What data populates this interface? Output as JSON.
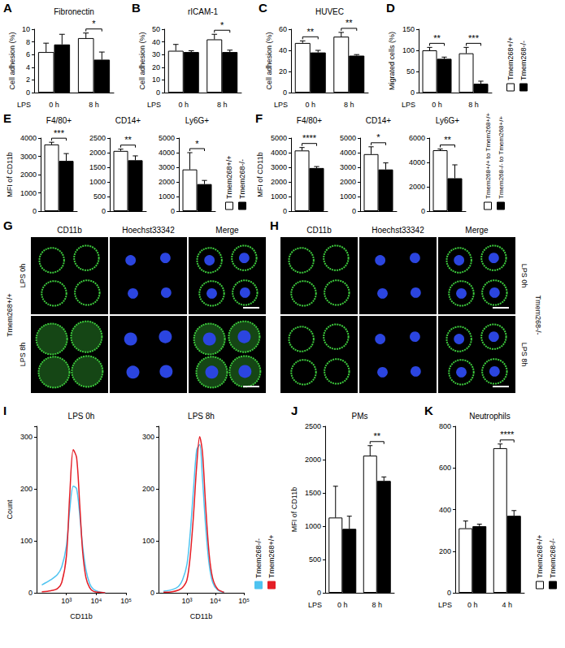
{
  "chart_data": [
    {
      "panel": "A",
      "type": "bar",
      "title": "Fibronectin",
      "ylabel": "Cell adhesion (%)",
      "xlabel": "LPS",
      "categories": [
        "0 h",
        "8 h"
      ],
      "series": [
        {
          "name": "Tmem268+/+",
          "color": "#ffffff",
          "values": [
            6.4,
            8.6
          ],
          "errors": [
            1.4,
            0.8
          ]
        },
        {
          "name": "Tmem268-/-",
          "color": "#000000",
          "values": [
            7.6,
            5.2
          ],
          "errors": [
            1.6,
            1.2
          ]
        }
      ],
      "ylim": [
        0,
        10
      ],
      "yticks": [
        0,
        2,
        4,
        6,
        8,
        10
      ],
      "grid": false,
      "significance": [
        {
          "category": "8 h",
          "text": "*"
        }
      ]
    },
    {
      "panel": "B",
      "type": "bar",
      "title": "rICAM-1",
      "ylabel": "Cell adhesion (%)",
      "xlabel": "LPS",
      "categories": [
        "0 h",
        "8 h"
      ],
      "series": [
        {
          "name": "Tmem268+/+",
          "color": "#ffffff",
          "values": [
            33,
            42
          ],
          "errors": [
            5,
            4
          ]
        },
        {
          "name": "Tmem268-/-",
          "color": "#000000",
          "values": [
            32,
            32
          ],
          "errors": [
            1,
            1.5
          ]
        }
      ],
      "ylim": [
        0,
        50
      ],
      "yticks": [
        0,
        10,
        20,
        30,
        40,
        50
      ],
      "grid": false,
      "significance": [
        {
          "category": "8 h",
          "text": "*"
        }
      ]
    },
    {
      "panel": "C",
      "type": "bar",
      "title": "HUVEC",
      "ylabel": "Cell adhesion (%)",
      "xlabel": "LPS",
      "categories": [
        "0 h",
        "8 h"
      ],
      "series": [
        {
          "name": "Tmem268+/+",
          "color": "#ffffff",
          "values": [
            47,
            53
          ],
          "errors": [
            2,
            4
          ]
        },
        {
          "name": "Tmem268-/-",
          "color": "#000000",
          "values": [
            38,
            35
          ],
          "errors": [
            2,
            1
          ]
        }
      ],
      "ylim": [
        0,
        60
      ],
      "yticks": [
        0,
        20,
        40,
        60
      ],
      "grid": false,
      "significance": [
        {
          "category": "0 h",
          "text": "**"
        },
        {
          "category": "8 h",
          "text": "**"
        }
      ]
    },
    {
      "panel": "D",
      "type": "bar",
      "ylabel": "Migrated cells (%)",
      "xlabel": "LPS",
      "categories": [
        "0 h",
        "8 h"
      ],
      "series": [
        {
          "name": "Tmem268+/+",
          "color": "#ffffff",
          "values": [
            100,
            93
          ],
          "errors": [
            7,
            14
          ]
        },
        {
          "name": "Tmem268-/-",
          "color": "#000000",
          "values": [
            80,
            21
          ],
          "errors": [
            4,
            6
          ]
        }
      ],
      "ylim": [
        0,
        150
      ],
      "yticks": [
        0,
        50,
        100,
        150
      ],
      "grid": false,
      "legend": "right",
      "significance": [
        {
          "category": "0 h",
          "text": "**"
        },
        {
          "category": "8 h",
          "text": "***"
        }
      ]
    },
    {
      "panel": "E",
      "type": "bar",
      "title": "F4/80+",
      "ylabel": "MFI of CD11b",
      "categories": [
        null
      ],
      "tick_labels": "y",
      "series": [
        {
          "name": "Tmem268+/+",
          "color": "#ffffff",
          "values": [
            3650
          ],
          "errors": [
            120
          ]
        },
        {
          "name": "Tmem268-/-",
          "color": "#000000",
          "values": [
            2750
          ],
          "errors": [
            400
          ]
        }
      ],
      "ylim": [
        0,
        4000
      ],
      "yticks": [
        0,
        1000,
        2000,
        3000,
        4000
      ],
      "grid": false,
      "significance": [
        {
          "category": null,
          "text": "***"
        }
      ]
    },
    {
      "type": "bar",
      "title": "CD14+",
      "categories": [
        null
      ],
      "tick_labels": "y",
      "series": [
        {
          "name": "Tmem268+/+",
          "color": "#ffffff",
          "values": [
            2060
          ],
          "errors": [
            60
          ]
        },
        {
          "name": "Tmem268-/-",
          "color": "#000000",
          "values": [
            1740
          ],
          "errors": [
            150
          ]
        }
      ],
      "ylim": [
        0,
        2500
      ],
      "yticks": [
        0,
        500,
        1000,
        1500,
        2000,
        2500
      ],
      "grid": false,
      "significance": [
        {
          "category": null,
          "text": "**"
        }
      ]
    },
    {
      "type": "bar",
      "title": "Ly6G+",
      "categories": [
        null
      ],
      "tick_labels": "y",
      "legend": "right",
      "series": [
        {
          "name": "Tmem268+/+",
          "color": "#ffffff",
          "values": [
            2850
          ],
          "errors": [
            1150
          ]
        },
        {
          "name": "Tmem268-/-",
          "color": "#000000",
          "values": [
            1850
          ],
          "errors": [
            250
          ]
        }
      ],
      "ylim": [
        0,
        5000
      ],
      "yticks": [
        0,
        1000,
        2000,
        3000,
        4000,
        5000
      ],
      "grid": false,
      "significance": [
        {
          "category": null,
          "text": "*"
        }
      ]
    },
    {
      "panel": "F",
      "type": "bar",
      "title": "F4/80+",
      "ylabel": "MFI of CD11b",
      "categories": [
        null
      ],
      "tick_labels": "y",
      "series": [
        {
          "name": "Tmem268+/+ to Tmem268+/+",
          "color": "#ffffff",
          "values": [
            4150
          ],
          "errors": [
            200
          ]
        },
        {
          "name": "Tmem268-/- to Tmem268+/+",
          "color": "#000000",
          "values": [
            2950
          ],
          "errors": [
            100
          ]
        }
      ],
      "ylim": [
        0,
        5000
      ],
      "yticks": [
        0,
        1000,
        2000,
        3000,
        4000,
        5000
      ],
      "grid": false,
      "significance": [
        {
          "category": null,
          "text": "****"
        }
      ]
    },
    {
      "type": "bar",
      "title": "CD14+",
      "categories": [
        null
      ],
      "tick_labels": "y",
      "series": [
        {
          "name": "Tmem268+/+ to Tmem268+/+",
          "color": "#ffffff",
          "values": [
            3900
          ],
          "errors": [
            500
          ]
        },
        {
          "name": "Tmem268-/- to Tmem268+/+",
          "color": "#000000",
          "values": [
            2850
          ],
          "errors": [
            450
          ]
        }
      ],
      "ylim": [
        0,
        5000
      ],
      "yticks": [
        0,
        1000,
        2000,
        3000,
        4000,
        5000
      ],
      "grid": false,
      "significance": [
        {
          "category": null,
          "text": "*"
        }
      ]
    },
    {
      "type": "bar",
      "title": "Ly6G+",
      "categories": [
        null
      ],
      "tick_labels": "y",
      "legend": "right",
      "series": [
        {
          "name": "Tmem268+/+ to Tmem268+/+",
          "color": "#ffffff",
          "values": [
            5000
          ],
          "errors": [
            100
          ]
        },
        {
          "name": "Tmem268-/- to Tmem268+/+",
          "color": "#000000",
          "values": [
            2700
          ],
          "errors": [
            1100
          ]
        }
      ],
      "ylim": [
        0,
        6000
      ],
      "yticks": [
        0,
        2000,
        4000,
        6000
      ],
      "grid": false,
      "significance": [
        {
          "category": null,
          "text": "**"
        }
      ]
    },
    {
      "panel": "I",
      "type": "line",
      "title": "LPS 0h",
      "xlabel": "CD11b",
      "ylabel": "Count",
      "log": "x",
      "x": [
        150,
        300,
        500,
        700,
        1000,
        1300,
        1700,
        2200,
        2800,
        3500,
        4500,
        6000,
        8000,
        12000,
        20000
      ],
      "series": [
        {
          "name": "Tmem268-/-",
          "color": "#4ec3f0",
          "values": [
            15,
            25,
            35,
            50,
            90,
            160,
            205,
            200,
            150,
            90,
            45,
            18,
            7,
            2,
            0
          ]
        },
        {
          "name": "Tmem268+/+",
          "color": "#e41e26",
          "values": [
            2,
            4,
            8,
            20,
            70,
            190,
            275,
            260,
            170,
            80,
            30,
            10,
            3,
            1,
            0
          ]
        }
      ],
      "xlim": [
        100,
        100000
      ],
      "xticks": [
        {
          "value": 1000,
          "label": "10³"
        },
        {
          "value": 10000,
          "label": "10⁴"
        },
        {
          "value": 100000,
          "label": "10⁵"
        }
      ],
      "ylim": [
        0,
        320
      ],
      "yticks": [
        0,
        100,
        200,
        300
      ],
      "grid": false
    },
    {
      "type": "line",
      "title": "LPS 8h",
      "xlabel": "CD11b",
      "log": "x",
      "legend": "right",
      "x": [
        150,
        300,
        500,
        700,
        1000,
        1300,
        1700,
        2200,
        2800,
        3500,
        4500,
        6000,
        8000,
        12000,
        20000
      ],
      "series": [
        {
          "name": "Tmem268-/-",
          "color": "#4ec3f0",
          "values": [
            3,
            6,
            12,
            25,
            55,
            115,
            200,
            275,
            285,
            220,
            130,
            55,
            20,
            5,
            1
          ]
        },
        {
          "name": "Tmem268+/+",
          "color": "#e41e26",
          "values": [
            1,
            2,
            5,
            10,
            25,
            70,
            150,
            245,
            300,
            270,
            170,
            75,
            28,
            7,
            1
          ]
        }
      ],
      "xlim": [
        100,
        100000
      ],
      "xticks": [
        {
          "value": 1000,
          "label": "10³"
        },
        {
          "value": 10000,
          "label": "10⁴"
        },
        {
          "value": 100000,
          "label": "10⁵"
        }
      ],
      "ylim": [
        0,
        320
      ],
      "yticks": [
        0,
        100,
        200,
        300
      ],
      "grid": false
    },
    {
      "panel": "J",
      "type": "bar",
      "title": "PMs",
      "ylabel": "MFI of CD11b",
      "xlabel": "LPS",
      "categories": [
        "0 h",
        "8 h"
      ],
      "series": [
        {
          "name": "Tmem268+/+",
          "color": "#ffffff",
          "values": [
            1130,
            2060
          ],
          "errors": [
            470,
            150
          ]
        },
        {
          "name": "Tmem268-/-",
          "color": "#000000",
          "values": [
            960,
            1680
          ],
          "errors": [
            190,
            60
          ]
        }
      ],
      "ylim": [
        0,
        2500
      ],
      "yticks": [
        0,
        500,
        1000,
        1500,
        2000,
        2500
      ],
      "grid": false,
      "significance": [
        {
          "category": "8 h",
          "text": "**"
        }
      ]
    },
    {
      "panel": "K",
      "type": "bar",
      "title": "Neutrophils",
      "xlabel": "LPS",
      "legend": "right",
      "categories": [
        "0 h",
        "4 h"
      ],
      "series": [
        {
          "name": "Tmem268+/+",
          "color": "#ffffff",
          "values": [
            310,
            695
          ],
          "errors": [
            35,
            20
          ]
        },
        {
          "name": "Tmem268-/-",
          "color": "#000000",
          "values": [
            320,
            370
          ],
          "errors": [
            10,
            25
          ]
        }
      ],
      "ylim": [
        0,
        800
      ],
      "yticks": [
        0,
        200,
        400,
        600,
        800
      ],
      "grid": false,
      "significance": [
        {
          "category": "4 h",
          "text": "****"
        }
      ]
    }
  ],
  "images": [
    {
      "panel": "G",
      "group": "Tmem268+/+",
      "columns": [
        "CD11b",
        "Hoechst33342",
        "Merge"
      ],
      "rows": [
        "LPS 0h",
        "LPS 8h"
      ]
    },
    {
      "panel": "H",
      "group": "Tmem268-/-",
      "columns": [
        "CD11b",
        "Hoechst33342",
        "Merge"
      ],
      "rows": [
        "LPS 0h",
        "LPS 8h"
      ]
    }
  ]
}
